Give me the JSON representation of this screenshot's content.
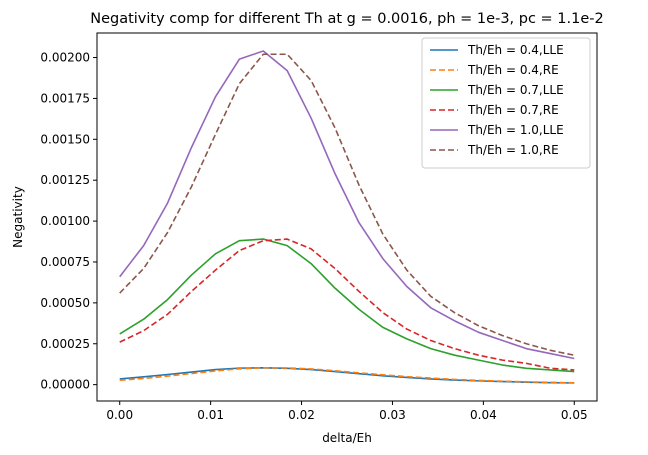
{
  "chart_data": {
    "type": "line",
    "title": "Negativity comp for different Th at g = 0.0016, ph = 1e-3, pc = 1.1e-2",
    "xlabel": "delta/Eh",
    "ylabel": "Negativity",
    "xlim": [
      -0.0025,
      0.0525
    ],
    "ylim": [
      -0.0001,
      0.00215
    ],
    "xticks": [
      0.0,
      0.01,
      0.02,
      0.03,
      0.04,
      0.05
    ],
    "xtick_labels": [
      "0.00",
      "0.01",
      "0.02",
      "0.03",
      "0.04",
      "0.05"
    ],
    "yticks": [
      0.0,
      0.00025,
      0.0005,
      0.00075,
      0.001,
      0.00125,
      0.0015,
      0.00175,
      0.002
    ],
    "ytick_labels": [
      "0.00000",
      "0.00025",
      "0.00050",
      "0.00075",
      "0.00100",
      "0.00125",
      "0.00150",
      "0.00175",
      "0.00200"
    ],
    "grid": false,
    "legend_position": "top-right",
    "x": [
      0.0,
      0.00263,
      0.00526,
      0.00789,
      0.01053,
      0.01316,
      0.01579,
      0.01842,
      0.02105,
      0.02368,
      0.02632,
      0.02895,
      0.03158,
      0.03421,
      0.03684,
      0.03947,
      0.04211,
      0.04474,
      0.04737,
      0.05
    ],
    "series": [
      {
        "name": "Th/Eh = 0.4,LLE",
        "color": "#1f77b4",
        "dash": "solid",
        "values": [
          3.5e-05,
          4.8e-05,
          6.2e-05,
          7.7e-05,
          9.2e-05,
          0.000101,
          0.000103,
          0.0001,
          9.2e-05,
          8e-05,
          6.7e-05,
          5.4e-05,
          4.4e-05,
          3.5e-05,
          2.8e-05,
          2.3e-05,
          1.9e-05,
          1.5e-05,
          1.2e-05,
          1e-05
        ]
      },
      {
        "name": "Th/Eh = 0.4,RE",
        "color": "#ff7f0e",
        "dash": "dashed",
        "values": [
          2.7e-05,
          3.8e-05,
          5.2e-05,
          6.8e-05,
          8.4e-05,
          9.7e-05,
          0.000103,
          0.000102,
          9.6e-05,
          8.5e-05,
          7.2e-05,
          6e-05,
          4.9e-05,
          4e-05,
          3.2e-05,
          2.6e-05,
          2.1e-05,
          1.7e-05,
          1.4e-05,
          1.1e-05
        ]
      },
      {
        "name": "Th/Eh = 0.7,LLE",
        "color": "#2ca02c",
        "dash": "solid",
        "values": [
          0.00031,
          0.0004,
          0.00052,
          0.00067,
          0.0008,
          0.00088,
          0.00089,
          0.00085,
          0.00074,
          0.00059,
          0.00046,
          0.00035,
          0.00028,
          0.00022,
          0.00018,
          0.00015,
          0.00012,
          0.0001,
          9e-05,
          8e-05
        ]
      },
      {
        "name": "Th/Eh = 0.7,RE",
        "color": "#d62728",
        "dash": "dashed",
        "values": [
          0.00026,
          0.00033,
          0.00043,
          0.00057,
          0.0007,
          0.00082,
          0.00088,
          0.00089,
          0.00083,
          0.00071,
          0.00057,
          0.00044,
          0.00034,
          0.00027,
          0.00022,
          0.00018,
          0.00015,
          0.00013,
          0.0001,
          9e-05
        ]
      },
      {
        "name": "Th/Eh = 1.0,LLE",
        "color": "#9467bd",
        "dash": "solid",
        "values": [
          0.00066,
          0.00085,
          0.00111,
          0.00145,
          0.00176,
          0.00199,
          0.00204,
          0.00192,
          0.00163,
          0.00129,
          0.00099,
          0.00077,
          0.0006,
          0.00047,
          0.00039,
          0.00032,
          0.00027,
          0.00022,
          0.00019,
          0.00016
        ]
      },
      {
        "name": "Th/Eh = 1.0,RE",
        "color": "#8c564b",
        "dash": "dashed",
        "values": [
          0.00056,
          0.00071,
          0.00093,
          0.00121,
          0.00153,
          0.00184,
          0.00202,
          0.00202,
          0.00186,
          0.00157,
          0.00122,
          0.00092,
          0.0007,
          0.00054,
          0.00044,
          0.00036,
          0.0003,
          0.00025,
          0.00021,
          0.00018
        ]
      }
    ]
  }
}
